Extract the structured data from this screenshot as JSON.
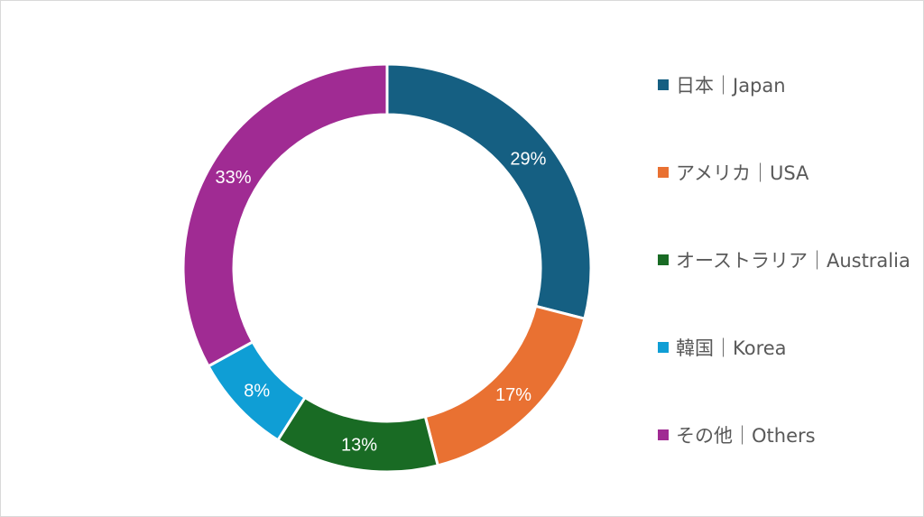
{
  "chart_data": {
    "type": "pie",
    "categories": [
      "日本｜Japan",
      "アメリカ｜USA",
      "オーストラリア｜Australia",
      "韓国｜Korea",
      "その他｜Others"
    ],
    "values": [
      29,
      17,
      13,
      8,
      33
    ],
    "data_labels": [
      "29%",
      "17%",
      "13%",
      "8%",
      "33%"
    ],
    "colors": [
      "#155f82",
      "#e97132",
      "#196b24",
      "#0f9ed5",
      "#a02b93"
    ],
    "style": "donut",
    "legend_position": "right"
  }
}
